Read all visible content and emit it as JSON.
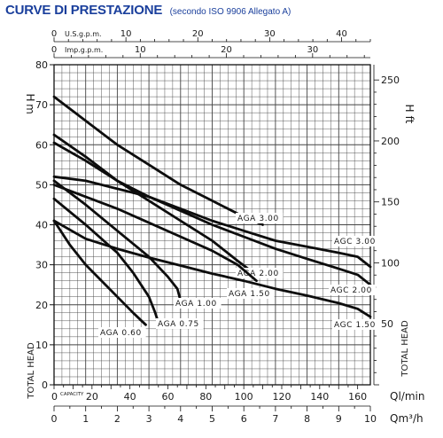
{
  "title": "CURVE DI PRESTAZIONE",
  "subtitle": "(secondo ISO 9906 Allegato A)",
  "chart_data": {
    "type": "line",
    "grid": true,
    "axes": {
      "left": {
        "unit": "m",
        "label": "TOTAL HEAD",
        "range": [
          0,
          80
        ],
        "ticks": [
          0,
          10,
          20,
          30,
          40,
          50,
          60,
          70,
          80
        ]
      },
      "right": {
        "unit": "ft",
        "label": "TOTAL HEAD",
        "range": [
          0,
          262.5
        ],
        "ticks": [
          50,
          100,
          150,
          200,
          250
        ]
      },
      "bottom_lmin": {
        "unit": "Ql/min",
        "label": "CAPACITY",
        "range": [
          0,
          166.7
        ],
        "ticks": [
          0,
          20,
          40,
          60,
          80,
          100,
          120,
          140,
          160
        ]
      },
      "bottom_m3h": {
        "unit": "Qm³/h",
        "range": [
          0,
          10
        ],
        "ticks": [
          0,
          1,
          2,
          3,
          4,
          5,
          6,
          7,
          8,
          9,
          10
        ]
      },
      "top_usgpm": {
        "unit": "U.S.g.p.m.",
        "range": [
          0,
          44
        ],
        "ticks": [
          0,
          10,
          20,
          30,
          40
        ]
      },
      "top_impgpm": {
        "unit": "Imp.g.p.m.",
        "range": [
          0,
          36.7
        ],
        "ticks": [
          0,
          10,
          20,
          30
        ]
      }
    },
    "x_unit": "m3/h",
    "y_unit": "m",
    "series": [
      {
        "name": "AGA 3.00",
        "points": [
          [
            0,
            72
          ],
          [
            1,
            66
          ],
          [
            2,
            60
          ],
          [
            3,
            55
          ],
          [
            4,
            50
          ],
          [
            5,
            46
          ],
          [
            6,
            42
          ],
          [
            6.6,
            40
          ]
        ]
      },
      {
        "name": "AGC 3.00",
        "points": [
          [
            0,
            52
          ],
          [
            1,
            51
          ],
          [
            2,
            49
          ],
          [
            3,
            47
          ],
          [
            4,
            44
          ],
          [
            5,
            41
          ],
          [
            6,
            38.5
          ],
          [
            7,
            36
          ],
          [
            8,
            34.5
          ],
          [
            9,
            33
          ],
          [
            9.6,
            32
          ],
          [
            10,
            29.5
          ]
        ]
      },
      {
        "name": "AGA 2.00",
        "points": [
          [
            0,
            62.5
          ],
          [
            1,
            57
          ],
          [
            2,
            51
          ],
          [
            3,
            46
          ],
          [
            4,
            41
          ],
          [
            5,
            36
          ],
          [
            5.8,
            31
          ],
          [
            6.3,
            28
          ]
        ]
      },
      {
        "name": "AGC 2.00",
        "points": [
          [
            0,
            60.5
          ],
          [
            1,
            56
          ],
          [
            2,
            51
          ],
          [
            3,
            47
          ],
          [
            4,
            43.5
          ],
          [
            5,
            40
          ],
          [
            6,
            37
          ],
          [
            7,
            34
          ],
          [
            8,
            31.5
          ],
          [
            9,
            29
          ],
          [
            9.6,
            27.5
          ],
          [
            10,
            25
          ]
        ]
      },
      {
        "name": "AGA 1.50",
        "points": [
          [
            0,
            50
          ],
          [
            1,
            47
          ],
          [
            2,
            44
          ],
          [
            3,
            40.5
          ],
          [
            4,
            37
          ],
          [
            5,
            33.5
          ],
          [
            5.8,
            30
          ],
          [
            6.4,
            26
          ]
        ]
      },
      {
        "name": "AGA 1.00",
        "points": [
          [
            0,
            51
          ],
          [
            1,
            45
          ],
          [
            2,
            38.5
          ],
          [
            3,
            32
          ],
          [
            3.6,
            27
          ],
          [
            3.9,
            24
          ],
          [
            4,
            21
          ]
        ]
      },
      {
        "name": "AGC 1.50",
        "points": [
          [
            0,
            41
          ],
          [
            1,
            36.5
          ],
          [
            2,
            34
          ],
          [
            3,
            31.8
          ],
          [
            4,
            29.8
          ],
          [
            5,
            27.8
          ],
          [
            6,
            26
          ],
          [
            7,
            24
          ],
          [
            8,
            22.3
          ],
          [
            9,
            20.4
          ],
          [
            9.6,
            19
          ],
          [
            10,
            17
          ]
        ]
      },
      {
        "name": "AGA 0.75",
        "points": [
          [
            0,
            46.5
          ],
          [
            1,
            40
          ],
          [
            2,
            33
          ],
          [
            2.5,
            28
          ],
          [
            3,
            22
          ],
          [
            3.2,
            18
          ],
          [
            3.3,
            15.5
          ]
        ]
      },
      {
        "name": "AGA 0.60",
        "points": [
          [
            0,
            41
          ],
          [
            0.5,
            35
          ],
          [
            1,
            30
          ],
          [
            2,
            22
          ],
          [
            2.5,
            18
          ],
          [
            2.9,
            15
          ]
        ]
      }
    ]
  }
}
